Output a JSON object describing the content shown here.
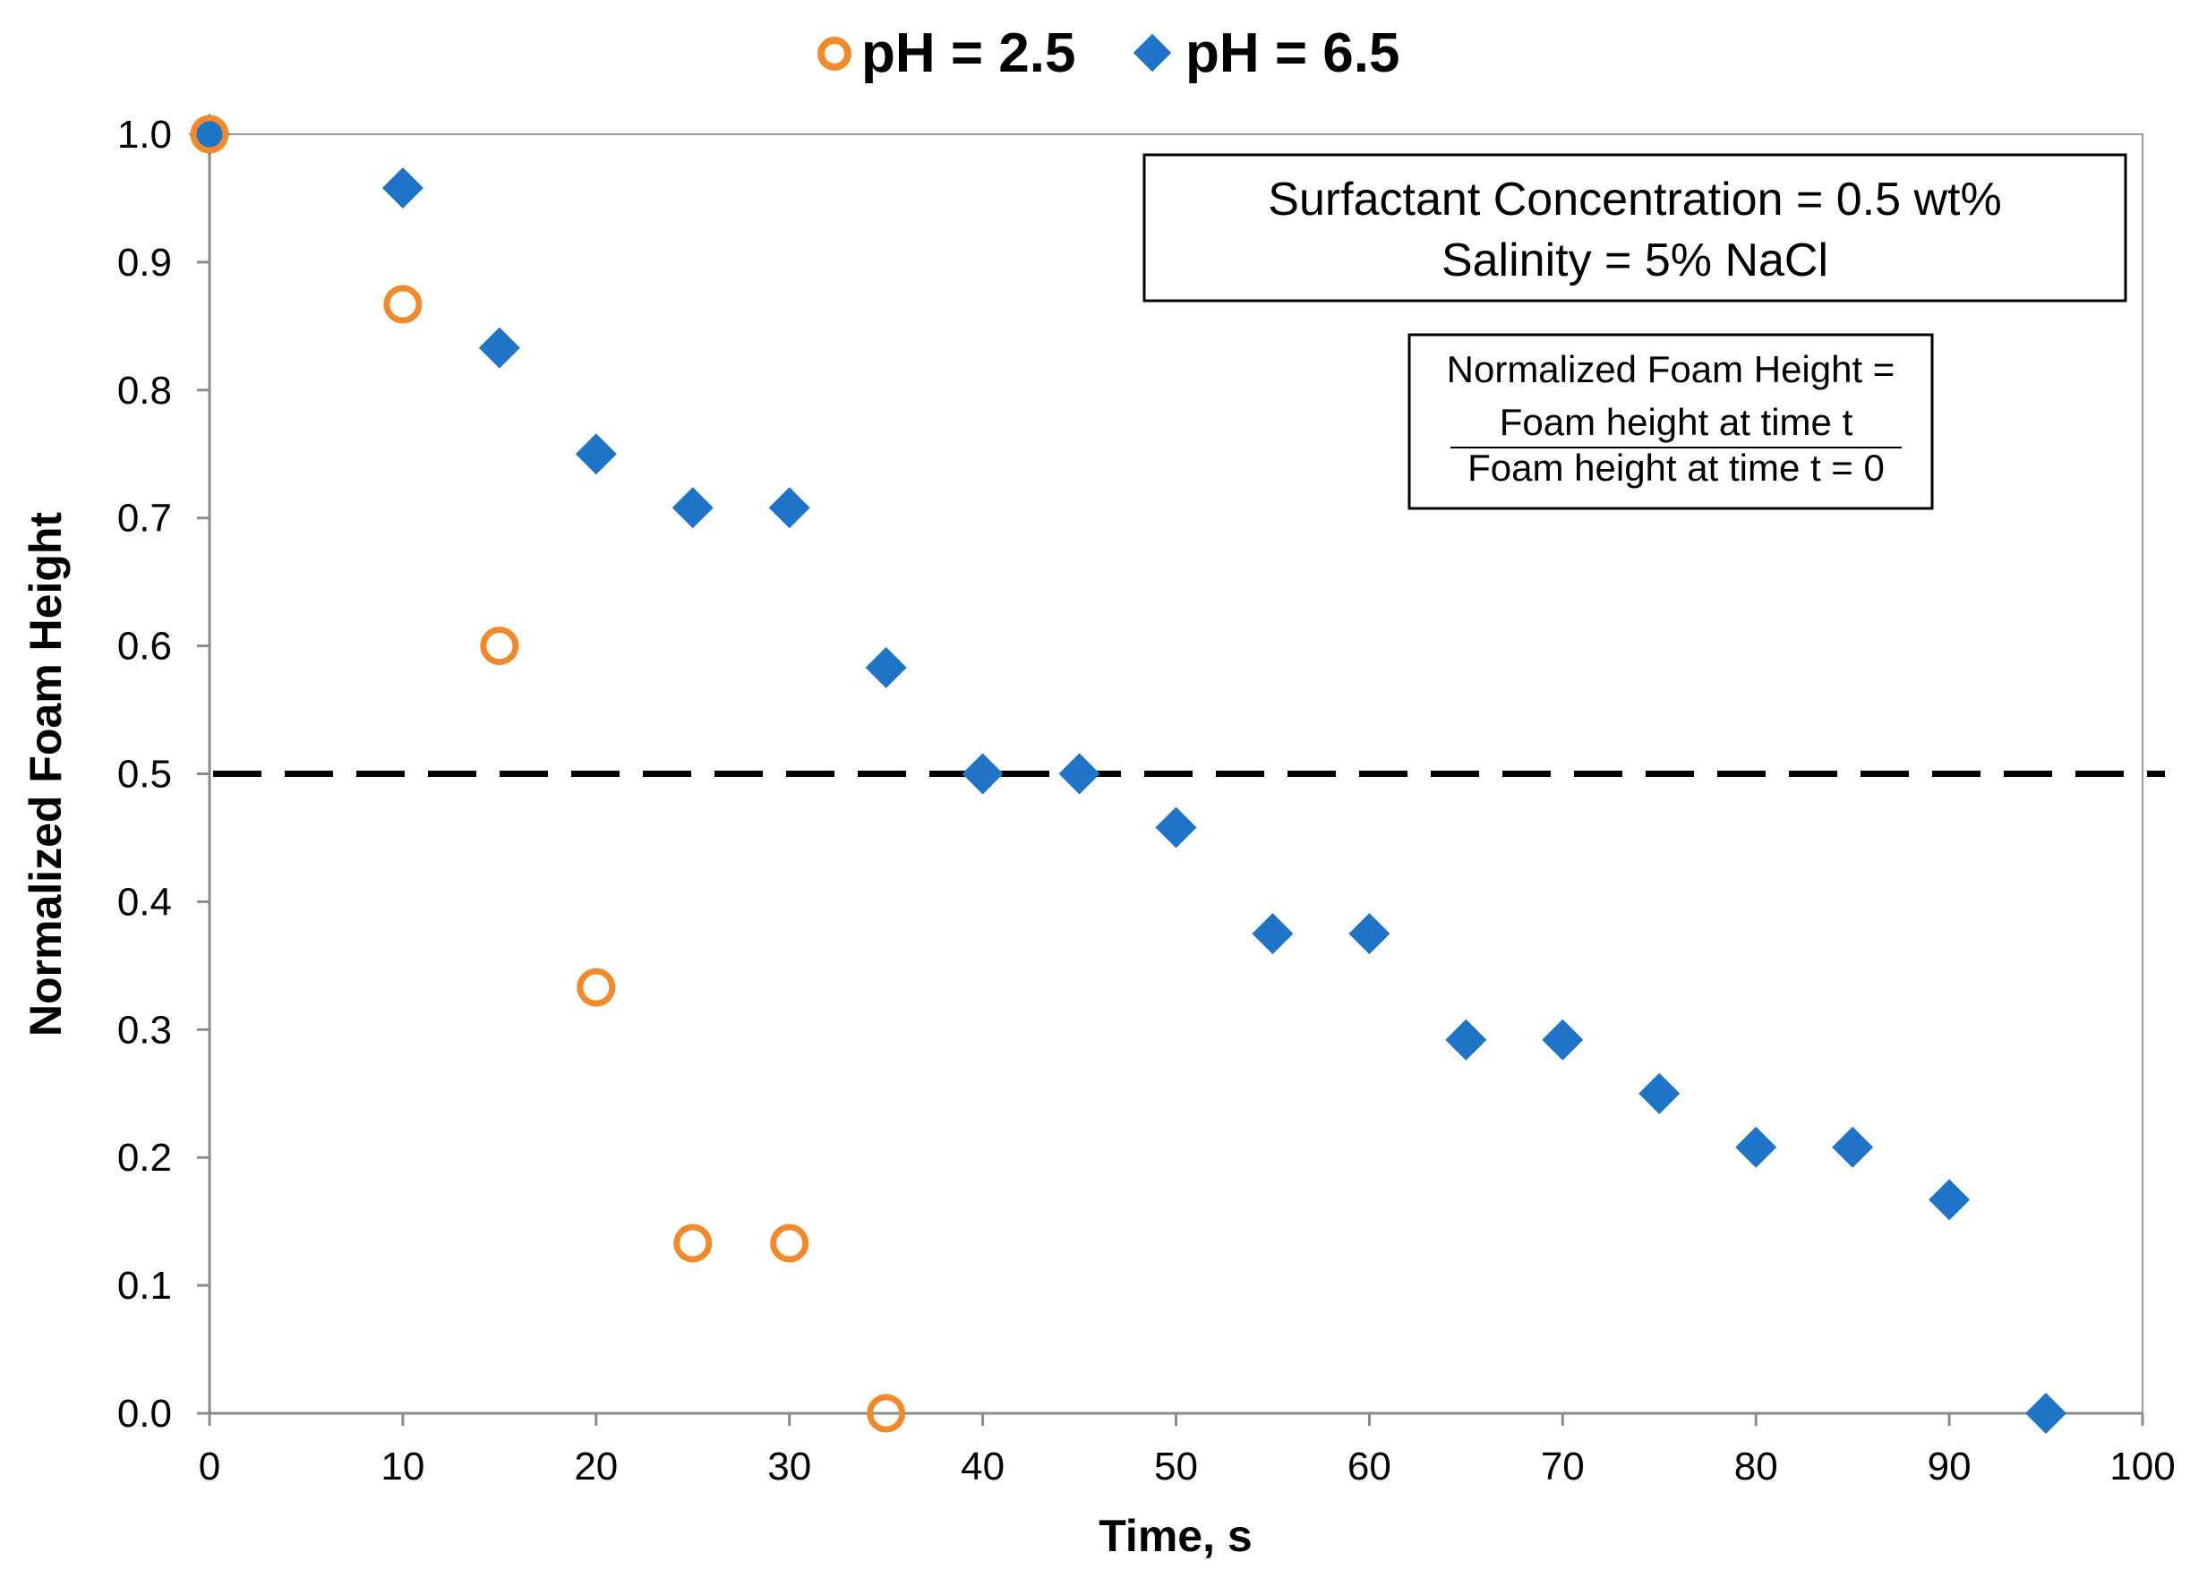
{
  "chart_data": {
    "type": "scatter",
    "title": "",
    "xlabel": "Time, s",
    "ylabel": "Normalized Foam Height",
    "xlim": [
      0,
      100
    ],
    "ylim": [
      0,
      1.0
    ],
    "xticks": [
      "0",
      "10",
      "20",
      "30",
      "40",
      "50",
      "60",
      "70",
      "80",
      "90",
      "100"
    ],
    "yticks": [
      "0.0",
      "0.1",
      "0.2",
      "0.3",
      "0.4",
      "0.5",
      "0.6",
      "0.7",
      "0.8",
      "0.9",
      "1.0"
    ],
    "grid": false,
    "legend_position": "top",
    "series": [
      {
        "name": "pH = 2.5",
        "marker": "open-circle",
        "color": "#F08A2C",
        "x": [
          0,
          10,
          15,
          20,
          25,
          30,
          35
        ],
        "y": [
          1.0,
          0.867,
          0.6,
          0.333,
          0.133,
          0.133,
          0.0
        ]
      },
      {
        "name": "pH = 6.5",
        "marker": "diamond",
        "color": "#1F74C8",
        "x": [
          0,
          10,
          15,
          20,
          25,
          30,
          35,
          40,
          45,
          50,
          55,
          60,
          65,
          70,
          75,
          80,
          85,
          90,
          95
        ],
        "y": [
          1.0,
          0.958,
          0.833,
          0.75,
          0.708,
          0.708,
          0.583,
          0.5,
          0.5,
          0.458,
          0.375,
          0.375,
          0.292,
          0.292,
          0.25,
          0.208,
          0.208,
          0.167,
          0.0
        ]
      }
    ],
    "reference_line": {
      "y": 0.5,
      "style": "dashed",
      "color": "#000000"
    },
    "annotations": {
      "conditions": {
        "line1": "Surfactant  Concentration  = 0.5 wt%",
        "line2": "Salinity  = 5% NaCl"
      },
      "formula": {
        "label": "Normalized Foam Height =",
        "numerator": "Foam height at time t",
        "denominator": "Foam height at time t = 0"
      }
    }
  }
}
